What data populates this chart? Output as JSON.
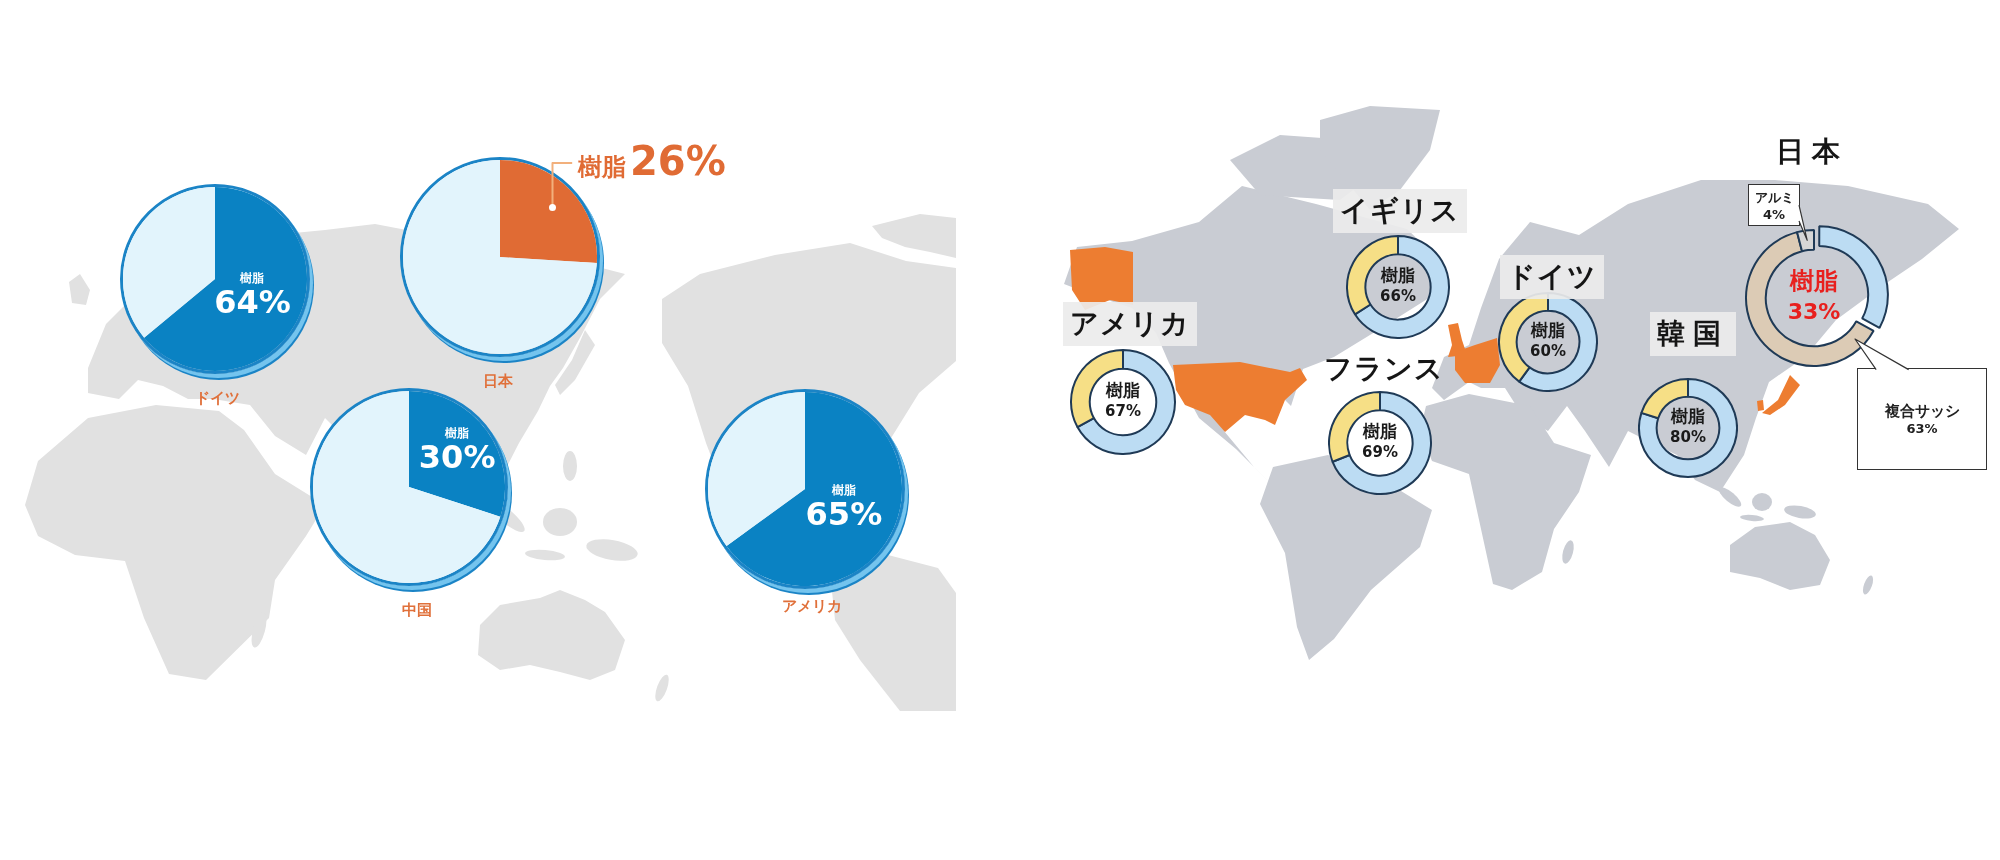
{
  "chart_data": [
    {
      "type": "pie",
      "title": "ドイツ",
      "categories": [
        "樹脂",
        null
      ],
      "values": [
        64,
        36
      ],
      "colors": [
        "#0a82c3",
        "#e2f4fc"
      ],
      "value_labels": [
        "64%",
        null
      ]
    },
    {
      "type": "pie",
      "title": "日本",
      "categories": [
        "樹脂",
        null
      ],
      "values": [
        26,
        74
      ],
      "colors": [
        "#e06b34",
        "#e2f4fc"
      ],
      "value_labels": [
        "26%",
        null
      ]
    },
    {
      "type": "pie",
      "title": "中国",
      "categories": [
        "樹脂",
        null
      ],
      "values": [
        30,
        70
      ],
      "colors": [
        "#0a82c3",
        "#e2f4fc"
      ],
      "value_labels": [
        "30%",
        null
      ]
    },
    {
      "type": "pie",
      "title": "アメリカ",
      "categories": [
        "樹脂",
        null
      ],
      "values": [
        65,
        35
      ],
      "colors": [
        "#0a82c3",
        "#e2f4fc"
      ],
      "value_labels": [
        "65%",
        null
      ]
    },
    {
      "type": "donut",
      "title": "アメリカ",
      "categories": [
        "樹脂",
        null
      ],
      "values": [
        67,
        33
      ],
      "colors": [
        "#bcdcf3",
        "#f6df86"
      ],
      "value_labels": [
        "67%",
        null
      ]
    },
    {
      "type": "donut",
      "title": "イギリス",
      "categories": [
        "樹脂",
        null
      ],
      "values": [
        66,
        34
      ],
      "colors": [
        "#bcdcf3",
        "#f6df86"
      ],
      "value_labels": [
        "66%",
        null
      ]
    },
    {
      "type": "donut",
      "title": "フランス",
      "categories": [
        "樹脂",
        null
      ],
      "values": [
        69,
        31
      ],
      "colors": [
        "#bcdcf3",
        "#f6df86"
      ],
      "value_labels": [
        "69%",
        null
      ]
    },
    {
      "type": "donut",
      "title": "ドイツ",
      "categories": [
        "樹脂",
        null
      ],
      "values": [
        60,
        40
      ],
      "colors": [
        "#bcdcf3",
        "#f6df86"
      ],
      "value_labels": [
        "60%",
        null
      ]
    },
    {
      "type": "donut",
      "title": "韓国",
      "categories": [
        "樹脂",
        null
      ],
      "values": [
        80,
        20
      ],
      "colors": [
        "#bcdcf3",
        "#f6df86"
      ],
      "value_labels": [
        "80%",
        null
      ]
    },
    {
      "type": "donut",
      "title": "日本",
      "categories": [
        "樹脂",
        "複合サッシ",
        "アルミ"
      ],
      "values": [
        33,
        63,
        4
      ],
      "colors": [
        "#bcdcf3",
        "#dccbb5",
        "#d6d6d6"
      ],
      "value_labels": [
        "33%",
        "63%",
        "4%"
      ]
    }
  ]
}
